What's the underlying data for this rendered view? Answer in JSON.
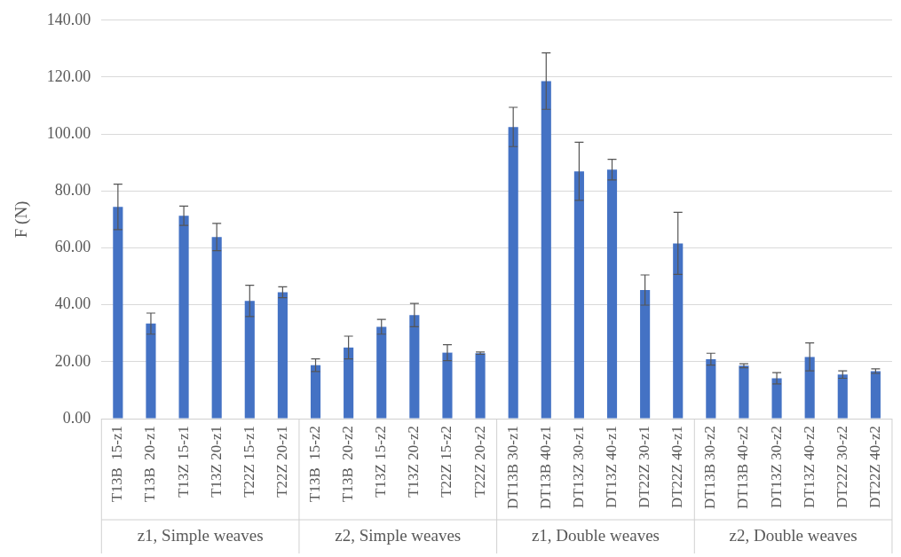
{
  "chart_data": {
    "type": "bar",
    "ylabel": "F (N)",
    "categories": [
      "T13B  15-z1",
      "T13B  20-z1",
      "T13Z 15-z1",
      "T13Z 20-z1",
      "T22Z 15-z1",
      "T22Z 20-z1",
      "T13B  15-z2",
      "T13B  20-z2",
      "T13Z 15-z2",
      "T13Z 20-z2",
      "T22Z 15-z2",
      "T22Z 20-z2",
      "DT13B 30-z1",
      "DT13B 40-z1",
      "DT13Z 30-z1",
      "DT13Z 40-z1",
      "DT22Z 30-z1",
      "DT22Z 40-z1",
      "DT13B 30-z2",
      "DT13B 40-z2",
      "DT13Z 30-z2",
      "DT13Z 40-z2",
      "DT22Z 30-z2",
      "DT22Z 40-z2"
    ],
    "values": [
      74.4,
      33.4,
      71.3,
      63.8,
      41.4,
      44.4,
      18.8,
      25.0,
      32.3,
      36.4,
      23.2,
      23.0,
      102.5,
      118.6,
      86.9,
      87.5,
      45.2,
      61.6,
      20.9,
      18.6,
      14.2,
      21.7,
      15.5,
      16.7
    ],
    "errors": [
      8.0,
      3.7,
      3.4,
      4.8,
      5.5,
      1.9,
      2.2,
      4.0,
      2.6,
      4.1,
      2.8,
      0.4,
      6.9,
      9.9,
      10.2,
      3.6,
      5.3,
      10.9,
      2.1,
      0.7,
      2.0,
      4.9,
      1.3,
      0.8
    ],
    "color": "#4472c4",
    "ylim": [
      0,
      140
    ],
    "yticks": [
      {
        "value": 0,
        "label": "0.00"
      },
      {
        "value": 20,
        "label": "20.00"
      },
      {
        "value": 40,
        "label": "40.00"
      },
      {
        "value": 60,
        "label": "60.00"
      },
      {
        "value": 80,
        "label": "80.00"
      },
      {
        "value": 100,
        "label": "100.00"
      },
      {
        "value": 120,
        "label": "120.00"
      },
      {
        "value": 140,
        "label": "140.00"
      }
    ],
    "grid": "y",
    "legend": false,
    "annotations": [
      "z1, Simple weaves",
      "z2, Simple weaves",
      "z1, Double weaves",
      "z2, Double weaves"
    ]
  }
}
